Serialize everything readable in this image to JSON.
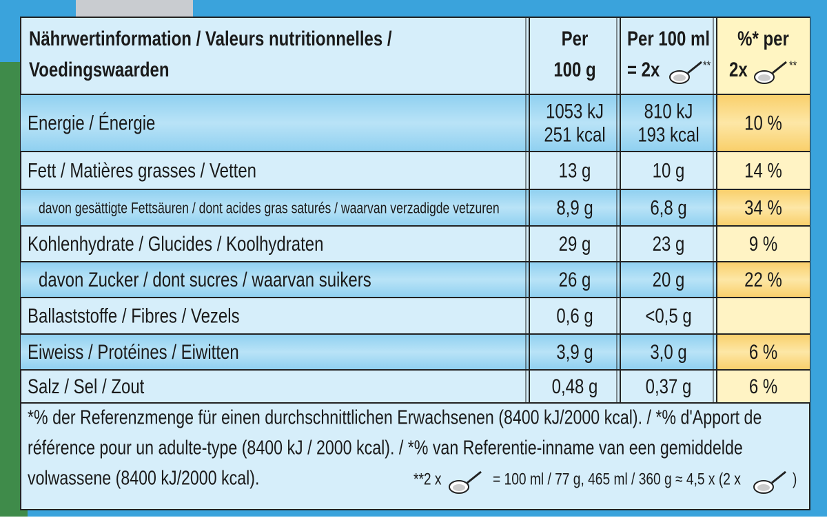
{
  "header": {
    "title": [
      "Nährwertinformation / Valeurs nutritionnelles /",
      "Voedingswaarden"
    ],
    "per_100g": [
      "Per",
      "100 g"
    ],
    "per_100ml": [
      "Per 100 ml",
      "= 2x"
    ],
    "per_100ml_mark": "**",
    "ri": [
      "%* per",
      "2x"
    ],
    "ri_mark": "**"
  },
  "rows": [
    {
      "label": "Energie / Énergie",
      "per_100g": [
        "1053 kJ",
        "251 kcal"
      ],
      "per_100ml": [
        "810 kJ",
        "193 kcal"
      ],
      "ri": "10 %"
    },
    {
      "label": "Fett / Matières grasses / Vetten",
      "per_100g": [
        "13 g"
      ],
      "per_100ml": [
        "10 g"
      ],
      "ri": "14 %"
    },
    {
      "label": "davon gesättigte Fettsäuren / dont acides gras saturés / waarvan verzadigde vetzuren",
      "per_100g": [
        "8,9 g"
      ],
      "per_100ml": [
        "6,8 g"
      ],
      "ri": "34 %"
    },
    {
      "label": "Kohlenhydrate / Glucides / Koolhydraten",
      "per_100g": [
        "29 g"
      ],
      "per_100ml": [
        "23 g"
      ],
      "ri": "9 %"
    },
    {
      "label": "davon Zucker / dont sucres / waarvan suikers",
      "per_100g": [
        "26 g"
      ],
      "per_100ml": [
        "20 g"
      ],
      "ri": "22 %"
    },
    {
      "label": "Ballaststoffe / Fibres / Vezels",
      "per_100g": [
        "0,6 g"
      ],
      "per_100ml": [
        "<0,5 g"
      ]
    },
    {
      "label": "Eiweiss / Protéines / Eiwitten",
      "per_100g": [
        "3,9 g"
      ],
      "per_100ml": [
        "3,0 g"
      ],
      "ri": "6 %"
    },
    {
      "label": "Salz / Sel / Zout",
      "per_100g": [
        "0,48 g"
      ],
      "per_100ml": [
        "0,37 g"
      ],
      "ri": "6 %"
    }
  ],
  "footnote": [
    "*% der Referenzmenge für einen durchschnittlichen Erwachsenen (8400 kJ/2000 kcal). / *% d'Apport de",
    "référence pour un adulte-type (8400 kJ / 2000 kcal). / *% van Referentie-inname van een gemiddelde",
    "volwassene (8400 kJ/2000 kcal)."
  ],
  "serving": {
    "prefix": "**2 x",
    "text": "= 100 ml / 77 g, 465 ml / 360 g ≈ 4,5 x (2 x",
    "suffix": ")"
  }
}
